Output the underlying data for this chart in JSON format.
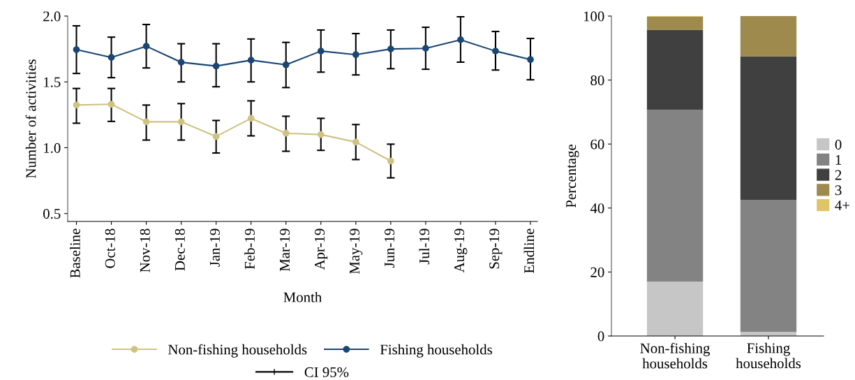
{
  "chart_data": [
    {
      "type": "line",
      "xlabel": "Month",
      "ylabel": "Number of activities",
      "categories": [
        "Baseline",
        "Oct-18",
        "Nov-18",
        "Dec-18",
        "Jan-19",
        "Feb-19",
        "Mar-19",
        "Apr-19",
        "May-19",
        "Jun-19",
        "Jul-19",
        "Aug-19",
        "Sep-19",
        "Endline"
      ],
      "series": [
        {
          "name": "Non-fishing households",
          "color": "#cfc383",
          "values": [
            1.324,
            1.33,
            1.197,
            1.197,
            1.085,
            1.223,
            1.11,
            1.1,
            1.043,
            0.899,
            null,
            null,
            null,
            null
          ],
          "errors": [
            [
              1.186,
              1.45
            ],
            [
              1.2,
              1.45
            ],
            [
              1.058,
              1.324
            ],
            [
              1.058,
              1.335
            ],
            [
              0.96,
              1.207
            ],
            [
              1.09,
              1.356
            ],
            [
              0.973,
              1.239
            ],
            [
              0.98,
              1.223
            ],
            [
              0.91,
              1.176
            ],
            [
              0.771,
              1.027
            ],
            null,
            null,
            null,
            null
          ]
        },
        {
          "name": "Fishing households",
          "color": "#1a4674",
          "values": [
            1.745,
            1.686,
            1.771,
            1.649,
            1.62,
            1.665,
            1.63,
            1.734,
            1.707,
            1.75,
            1.755,
            1.82,
            1.734,
            1.67
          ],
          "errors": [
            [
              1.564,
              1.926
            ],
            [
              1.532,
              1.84
            ],
            [
              1.606,
              1.936
            ],
            [
              1.5,
              1.79
            ],
            [
              1.463,
              1.79
            ],
            [
              1.5,
              1.826
            ],
            [
              1.457,
              1.8
            ],
            [
              1.574,
              1.894
            ],
            [
              1.553,
              1.867
            ],
            [
              1.6,
              1.894
            ],
            [
              1.596,
              1.915
            ],
            [
              1.65,
              1.995
            ],
            [
              1.59,
              1.883
            ],
            [
              1.516,
              1.83
            ]
          ]
        }
      ],
      "ylim": [
        0.44,
        2.0
      ],
      "yticks": [
        {
          "value": 0.5,
          "label": "0.5"
        },
        {
          "value": 1.0,
          "label": "1.0"
        },
        {
          "value": 1.5,
          "label": "1.5"
        },
        {
          "value": 2.0,
          "label": "2.0"
        }
      ],
      "marker": "circle",
      "line_style": "solid",
      "grid": false,
      "legend": "bottom",
      "annotations": [
        "CI 95%"
      ]
    },
    {
      "type": "bar",
      "stacked": true,
      "ylabel": "Percentage",
      "categories": [
        "Non-fishing\nhouseholds",
        "Fishing\nhouseholds"
      ],
      "series": [
        {
          "name": "0",
          "color": "#c6c6c6",
          "values": [
            17.0,
            1.3
          ]
        },
        {
          "name": "1",
          "color": "#838383",
          "values": [
            53.7,
            41.3
          ]
        },
        {
          "name": "2",
          "color": "#404040",
          "values": [
            25.0,
            44.8
          ]
        },
        {
          "name": "3",
          "color": "#9e8a4c",
          "values": [
            4.1,
            12.6
          ]
        },
        {
          "name": "4+",
          "color": "#dfc567",
          "values": [
            0.2,
            0
          ]
        }
      ],
      "ylim": [
        0,
        100
      ],
      "yticks": [
        0,
        20,
        40,
        60,
        80,
        100
      ],
      "grid": false,
      "legend": "right"
    }
  ]
}
